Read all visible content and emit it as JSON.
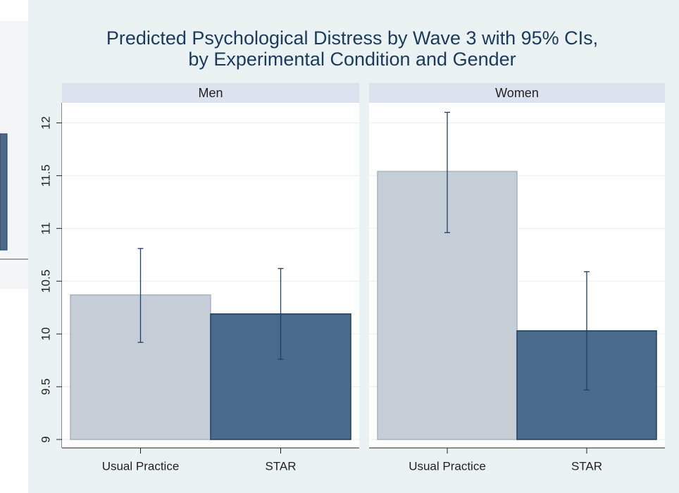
{
  "chart_data": {
    "type": "bar",
    "title": [
      "Predicted Psychological Distress by Wave 3 with 95% CIs,",
      "by Experimental Condition and Gender"
    ],
    "categories": [
      "Usual Practice",
      "STAR"
    ],
    "colors": [
      "#c5cdd7",
      "#4a6a8c"
    ],
    "edge_colors": [
      "#a8b5c4",
      "#213f5f"
    ],
    "bar_base": 9,
    "ylim": [
      8.92,
      12.19
    ],
    "yticks": [
      9,
      9.5,
      10,
      10.5,
      11,
      11.5,
      12
    ],
    "grid": true,
    "panels": [
      {
        "name": "Men",
        "values": [
          10.37,
          10.19
        ],
        "ci": [
          [
            9.92,
            10.81
          ],
          [
            9.76,
            10.62
          ]
        ]
      },
      {
        "name": "Women",
        "values": [
          11.54,
          10.03
        ],
        "ci": [
          [
            10.96,
            12.1
          ],
          [
            9.47,
            10.59
          ]
        ]
      }
    ]
  }
}
